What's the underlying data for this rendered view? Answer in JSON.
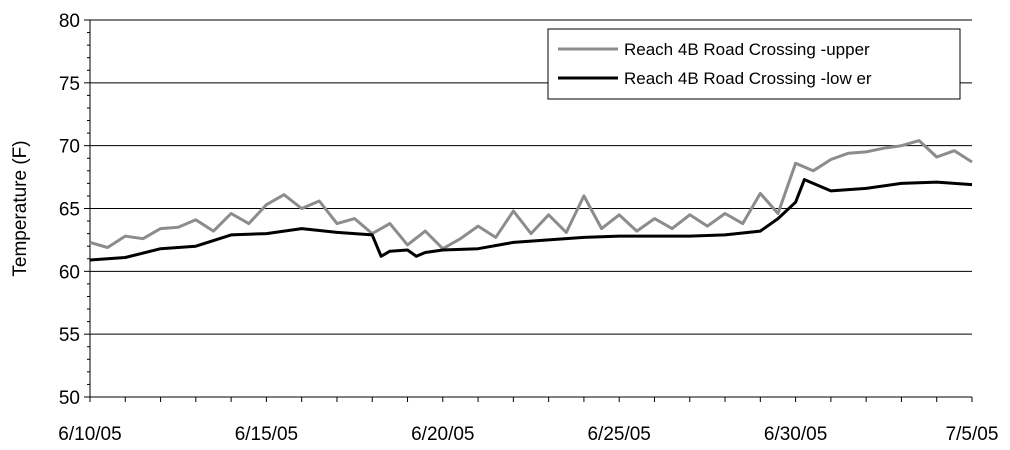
{
  "chart_data": {
    "type": "line",
    "title": "",
    "xlabel": "",
    "ylabel": "Temperature (F)",
    "ylim": [
      50,
      80
    ],
    "yticks": [
      50,
      55,
      60,
      65,
      70,
      75,
      80
    ],
    "xlim": [
      "6/10/05",
      "7/5/05"
    ],
    "xticks": [
      "6/10/05",
      "6/15/05",
      "6/20/05",
      "6/25/05",
      "6/30/05",
      "7/5/05"
    ],
    "grid": "horizontal",
    "legend_position": "top-right",
    "series": [
      {
        "name": "Reach 4B Road Crossing -upper",
        "color": "#8c8c8c",
        "x": [
          "6/10/05",
          "6/10/05 12:00",
          "6/11/05",
          "6/11/05 12:00",
          "6/12/05",
          "6/12/05 12:00",
          "6/13/05",
          "6/13/05 12:00",
          "6/14/05",
          "6/14/05 12:00",
          "6/15/05",
          "6/15/05 12:00",
          "6/16/05",
          "6/16/05 12:00",
          "6/17/05",
          "6/17/05 12:00",
          "6/18/05",
          "6/18/05 12:00",
          "6/19/05",
          "6/19/05 12:00",
          "6/20/05",
          "6/20/05 12:00",
          "6/21/05",
          "6/21/05 12:00",
          "6/22/05",
          "6/22/05 12:00",
          "6/23/05",
          "6/23/05 12:00",
          "6/24/05",
          "6/24/05 12:00",
          "6/25/05",
          "6/25/05 12:00",
          "6/26/05",
          "6/26/05 12:00",
          "6/27/05",
          "6/27/05 12:00",
          "6/28/05",
          "6/28/05 12:00",
          "6/29/05",
          "6/29/05 12:00",
          "6/30/05",
          "6/30/05 12:00",
          "7/1/05",
          "7/1/05 12:00",
          "7/2/05",
          "7/2/05 12:00",
          "7/3/05",
          "7/3/05 12:00",
          "7/4/05",
          "7/4/05 12:00",
          "7/5/05"
        ],
        "values": [
          62.3,
          61.9,
          62.8,
          62.6,
          63.4,
          63.5,
          64.1,
          63.2,
          64.6,
          63.8,
          65.3,
          66.1,
          65.0,
          65.6,
          63.8,
          64.2,
          63.0,
          63.8,
          62.1,
          63.2,
          61.8,
          62.6,
          63.6,
          62.7,
          64.8,
          63.0,
          64.5,
          63.1,
          66.0,
          63.4,
          64.5,
          63.2,
          64.2,
          63.4,
          64.5,
          63.6,
          64.6,
          63.8,
          66.2,
          64.6,
          68.6,
          68.0,
          68.9,
          69.4,
          69.5,
          69.8,
          70.0,
          70.4,
          69.1,
          69.6,
          68.7
        ]
      },
      {
        "name": "Reach 4B Road Crossing -low er",
        "color": "#000000",
        "x": [
          "6/10/05",
          "6/11/05",
          "6/12/05",
          "6/13/05",
          "6/14/05",
          "6/15/05",
          "6/16/05",
          "6/17/05",
          "6/18/05",
          "6/18/05 06:00",
          "6/18/05 12:00",
          "6/19/05",
          "6/19/05 06:00",
          "6/19/05 12:00",
          "6/20/05",
          "6/21/05",
          "6/22/05",
          "6/23/05",
          "6/24/05",
          "6/25/05",
          "6/26/05",
          "6/27/05",
          "6/28/05",
          "6/29/05",
          "6/29/05 12:00",
          "6/30/05",
          "6/30/05 06:00",
          "6/30/05 12:00",
          "7/1/05",
          "7/2/05",
          "7/3/05",
          "7/4/05",
          "7/5/05"
        ],
        "values": [
          60.9,
          61.1,
          61.8,
          62.0,
          62.9,
          63.0,
          63.4,
          63.1,
          62.9,
          61.2,
          61.6,
          61.7,
          61.2,
          61.5,
          61.7,
          61.8,
          62.3,
          62.5,
          62.7,
          62.8,
          62.8,
          62.8,
          62.9,
          63.2,
          64.2,
          65.5,
          67.3,
          67.0,
          66.4,
          66.6,
          67.0,
          67.1,
          66.9
        ]
      }
    ]
  }
}
